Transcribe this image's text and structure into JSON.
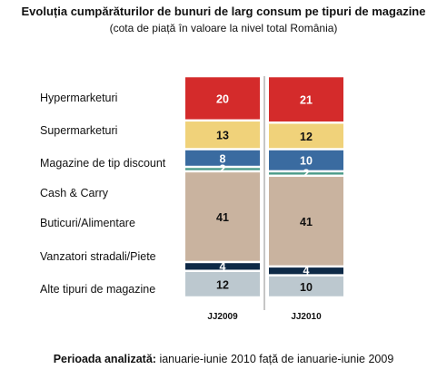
{
  "header": {
    "title": "Evoluția cumpărăturilor de bunuri de larg consum pe tipuri de magazine",
    "subtitle": "(cota de piață în valoare la nivel total România)"
  },
  "footer": {
    "label": "Perioada analizată:",
    "text": "ianuarie-iunie 2010 față de ianuarie-iunie 2009"
  },
  "chart_data": {
    "type": "bar",
    "stacked": true,
    "title": "Evoluția cumpărăturilor de bunuri de larg consum pe tipuri de magazine",
    "subtitle": "(cota de piață în valoare la nivel total România)",
    "categories": [
      "JJ2009",
      "JJ2010"
    ],
    "series": [
      {
        "name": "Hypermarketuri",
        "values": [
          20,
          21
        ],
        "color": "#d42b2b",
        "label_color": "light"
      },
      {
        "name": "Supermarketuri",
        "values": [
          13,
          12
        ],
        "color": "#f0d27a",
        "label_color": "dark"
      },
      {
        "name": "Magazine de tip discount",
        "values": [
          8,
          10
        ],
        "color": "#3a6ba0",
        "label_color": "light"
      },
      {
        "name": "Cash & Carry",
        "values": [
          2,
          2
        ],
        "color": "#4a9a88",
        "label_color": "light"
      },
      {
        "name": "Buticuri/Alimentare",
        "values": [
          41,
          41
        ],
        "color": "#c9b39f",
        "label_color": "dark"
      },
      {
        "name": "Vanzatori stradali/Piete",
        "values": [
          4,
          4
        ],
        "color": "#0e2a47",
        "label_color": "light"
      },
      {
        "name": "Alte tipuri de magazine",
        "values": [
          12,
          10
        ],
        "color": "#bcc8cf",
        "label_color": "dark"
      }
    ],
    "legend_position": "left",
    "grid": false
  }
}
